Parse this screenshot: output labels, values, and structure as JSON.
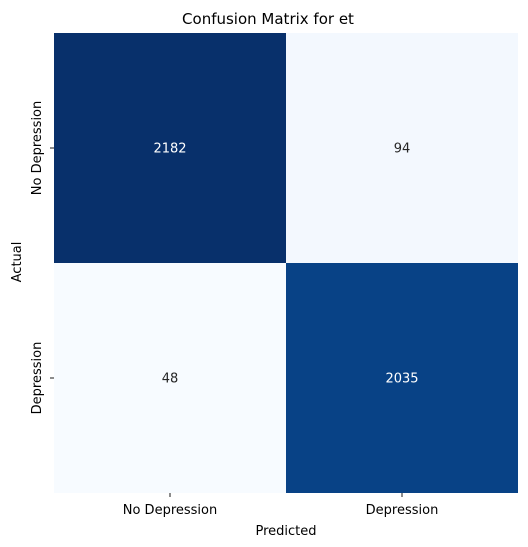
{
  "chart_data": {
    "type": "heatmap",
    "title": "Confusion Matrix for et",
    "xlabel": "Predicted",
    "ylabel": "Actual",
    "x_categories": [
      "No Depression",
      "Depression"
    ],
    "y_categories": [
      "No Depression",
      "Depression"
    ],
    "values": [
      [
        2182,
        94
      ],
      [
        48,
        2035
      ]
    ],
    "colormap": "Blues",
    "colorbar": false,
    "annotations": true,
    "color_range": [
      48,
      2182
    ]
  }
}
